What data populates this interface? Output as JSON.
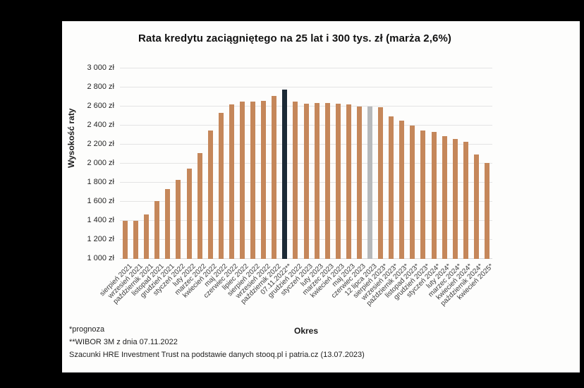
{
  "window": {
    "background_color": "#000000",
    "panel_background_color": "#fdfdfc"
  },
  "chart_data": {
    "type": "bar",
    "title": "Rata kredytu zaciągniętego na 25 lat i 300 tys. zł (marża 2,6%)",
    "xlabel": "Okres",
    "ylabel": "Wysokość raty",
    "ylim": [
      1000,
      3000
    ],
    "ytick_step": 200,
    "ytick_labels": [
      "1 000 zł",
      "1 200 zł",
      "1 400 zł",
      "1 600 zł",
      "1 800 zł",
      "2 000 zł",
      "2 200 zł",
      "2 400 zł",
      "2 600 zł",
      "2 800 zł",
      "3 000 zł"
    ],
    "grid": true,
    "legend": "none",
    "categories": [
      "sierpień 2021",
      "wrzesień 2021",
      "październik 2021",
      "listopad 2021",
      "grudzień 2021",
      "styczeń 2022",
      "luty 2022",
      "marzec 2022",
      "kwiecień 2022",
      "maj 2022",
      "czerwiec 2022",
      "lipiec 2022",
      "sierpień 2022",
      "wrzesień 2022",
      "październik 2022",
      "07.11.2022**",
      "grudzień 2022",
      "styczeń 2023",
      "luty 2023",
      "marzec 2023",
      "kwiecień 2023",
      "maj 2023",
      "czerwiec 2023",
      "12 lipca 2023",
      "sierpień 2023*",
      "wrzesień 2023*",
      "październik 2023*",
      "listopad 2023*",
      "grudzień 2023*",
      "styczeń 2024*",
      "luty 2024*",
      "marzec 2024*",
      "kwiecień 2024*",
      "październik 2024*",
      "kwiecień 2025*"
    ],
    "values": [
      1400,
      1400,
      1470,
      1610,
      1730,
      1830,
      1950,
      2110,
      2350,
      2530,
      2620,
      2650,
      2650,
      2660,
      2710,
      2780,
      2650,
      2630,
      2640,
      2640,
      2630,
      2620,
      2600,
      2600,
      2590,
      2500,
      2450,
      2400,
      2350,
      2330,
      2290,
      2260,
      2230,
      2100,
      2010
    ],
    "bar_color": "#c5875a",
    "special_colors": {
      "15": "#1c2a36",
      "23": "#b7b9bb"
    }
  },
  "footnotes": {
    "line1": "*prognoza",
    "line2": "**WIBOR 3M z dnia 07.11.2022",
    "line3": "Szacunki HRE Investment Trust na podstawie danych stooq.pl i patria.cz (13.07.2023)"
  }
}
